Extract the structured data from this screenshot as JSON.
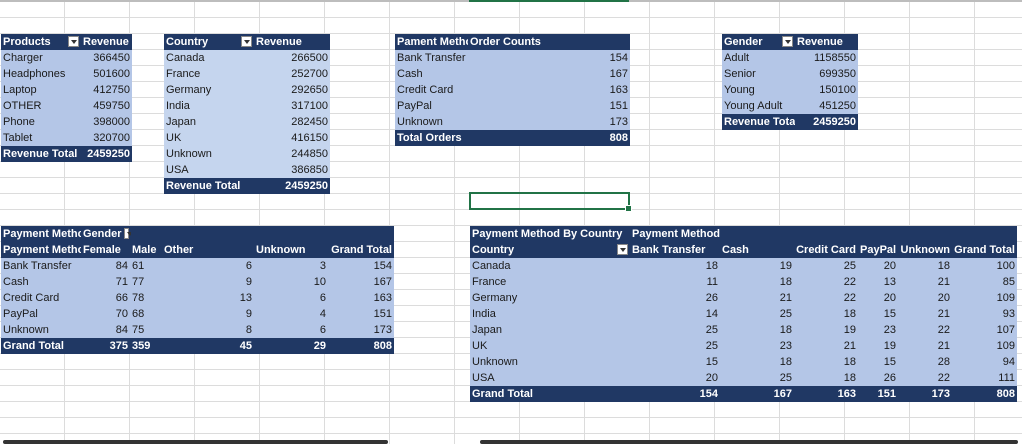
{
  "products_pivot": {
    "header": [
      "Products",
      "Revenue"
    ],
    "rows": [
      [
        "Charger",
        "366450"
      ],
      [
        "Headphones",
        "501600"
      ],
      [
        "Laptop",
        "412750"
      ],
      [
        "OTHER",
        "459750"
      ],
      [
        "Phone",
        "398000"
      ],
      [
        "Tablet",
        "320700"
      ]
    ],
    "total": [
      "Revenue Total",
      "2459250"
    ]
  },
  "country_pivot": {
    "header": [
      "Country",
      "Revenue"
    ],
    "rows": [
      [
        "Canada",
        "266500"
      ],
      [
        "France",
        "252700"
      ],
      [
        "Germany",
        "292650"
      ],
      [
        "India",
        "317100"
      ],
      [
        "Japan",
        "282450"
      ],
      [
        "UK",
        "416150"
      ],
      [
        "Unknown",
        "244850"
      ],
      [
        "USA",
        "386850"
      ]
    ],
    "total": [
      "Revenue Total",
      "2459250"
    ]
  },
  "payment_orders_pivot": {
    "header": [
      "Pament Method",
      "Order Counts"
    ],
    "rows": [
      [
        "Bank Transfer",
        "154"
      ],
      [
        "Cash",
        "167"
      ],
      [
        "Credit Card",
        "163"
      ],
      [
        "PayPal",
        "151"
      ],
      [
        "Unknown",
        "173"
      ]
    ],
    "total": [
      "Total Orders",
      "808"
    ]
  },
  "gender_pivot": {
    "header": [
      "Gender",
      "Revenue"
    ],
    "rows": [
      [
        "Adult",
        "1158550"
      ],
      [
        "Senior",
        "699350"
      ],
      [
        "Young",
        "150100"
      ],
      [
        "Young Adult",
        "451250"
      ]
    ],
    "total": [
      "Revenue Total",
      "2459250"
    ]
  },
  "payment_gender_pivot": {
    "title": [
      "Payment Method",
      "Gender"
    ],
    "header": [
      "Payment Method",
      "Female",
      "Male",
      "Other",
      "Unknown",
      "Grand Total"
    ],
    "rows": [
      [
        "Bank Transfer",
        "84",
        "61",
        "6",
        "3",
        "154"
      ],
      [
        "Cash",
        "71",
        "77",
        "9",
        "10",
        "167"
      ],
      [
        "Credit Card",
        "66",
        "78",
        "13",
        "6",
        "163"
      ],
      [
        "PayPal",
        "70",
        "68",
        "9",
        "4",
        "151"
      ],
      [
        "Unknown",
        "84",
        "75",
        "8",
        "6",
        "173"
      ]
    ],
    "total": [
      "Grand Total",
      "375",
      "359",
      "45",
      "29",
      "808"
    ]
  },
  "payment_country_pivot": {
    "title": [
      "Payment Method By Country",
      "Payment Method"
    ],
    "header": [
      "Country",
      "Bank Transfer",
      "Cash",
      "Credit Card",
      "PayPal",
      "Unknown",
      "Grand Total"
    ],
    "rows": [
      [
        "Canada",
        "18",
        "19",
        "25",
        "20",
        "18",
        "100"
      ],
      [
        "France",
        "11",
        "18",
        "22",
        "13",
        "21",
        "85"
      ],
      [
        "Germany",
        "26",
        "21",
        "22",
        "20",
        "20",
        "109"
      ],
      [
        "India",
        "14",
        "25",
        "18",
        "15",
        "21",
        "93"
      ],
      [
        "Japan",
        "25",
        "18",
        "19",
        "23",
        "22",
        "107"
      ],
      [
        "UK",
        "25",
        "23",
        "21",
        "19",
        "21",
        "109"
      ],
      [
        "Unknown",
        "15",
        "18",
        "18",
        "15",
        "28",
        "94"
      ],
      [
        "USA",
        "20",
        "25",
        "18",
        "26",
        "22",
        "111"
      ]
    ],
    "total": [
      "Grand Total",
      "154",
      "167",
      "163",
      "151",
      "173",
      "808"
    ]
  },
  "colors": {
    "header_bg": "#203864",
    "band_bg": "#b4c6e7",
    "band_alt_bg": "#c5d5ee",
    "selection": "#217346",
    "gridline": "#dcdcdc"
  }
}
